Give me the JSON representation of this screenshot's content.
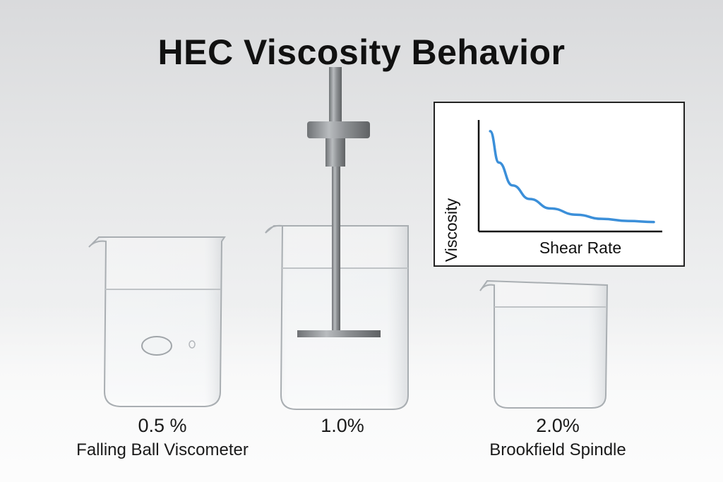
{
  "title": "HEC Viscosity Behavior",
  "beakers": [
    {
      "concentration": "0.5 %",
      "method": "Falling Ball Viscometer"
    },
    {
      "concentration": "1.0%",
      "method": ""
    },
    {
      "concentration": "2.0%",
      "method": "Brookfield Spindle"
    }
  ],
  "chart_data": {
    "type": "line",
    "title": "",
    "xlabel": "Shear Rate",
    "ylabel": "Viscosity",
    "grid": false,
    "series": [
      {
        "x": [
          0.05,
          0.1,
          0.18,
          0.28,
          0.4,
          0.55,
          0.7,
          0.85,
          1.0
        ],
        "y": [
          0.92,
          0.62,
          0.4,
          0.27,
          0.18,
          0.12,
          0.08,
          0.06,
          0.05
        ]
      }
    ],
    "line_color": "#3b8fd9"
  }
}
